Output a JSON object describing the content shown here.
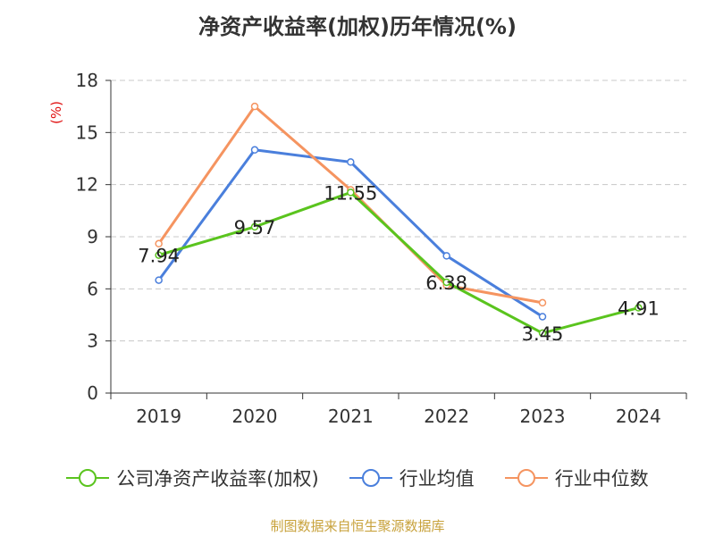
{
  "chart_data": {
    "type": "line",
    "title": "净资产收益率(加权)历年情况(%)",
    "ylabel": "(%)",
    "xlabel": "",
    "categories": [
      "2019",
      "2020",
      "2021",
      "2022",
      "2023",
      "2024"
    ],
    "ylim": [
      0,
      18
    ],
    "yticks": [
      "0",
      "3",
      "6",
      "9",
      "12",
      "15",
      "18"
    ],
    "grid": true,
    "legend_position": "bottom",
    "series": [
      {
        "name": "公司净资产收益率(加权)",
        "color": "#5ac41e",
        "values": [
          7.94,
          9.57,
          11.55,
          6.38,
          3.45,
          4.91
        ],
        "labels": [
          "7.94",
          "9.57",
          "11.55",
          "6.38",
          "3.45",
          "4.91"
        ]
      },
      {
        "name": "行业均值",
        "color": "#4a7fdc",
        "values": [
          6.5,
          14.0,
          13.3,
          7.9,
          4.4,
          null
        ]
      },
      {
        "name": "行业中位数",
        "color": "#f59460",
        "values": [
          8.6,
          16.5,
          11.7,
          6.2,
          5.2,
          null
        ]
      }
    ],
    "source": "制图数据来自恒生聚源数据库"
  }
}
